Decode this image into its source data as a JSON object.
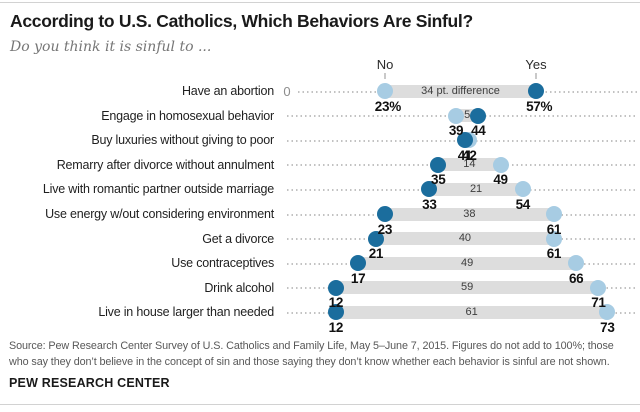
{
  "header": {
    "title": "According to U.S. Catholics, Which Behaviors Are Sinful?",
    "subtitle": "Do you think it is sinful to ..."
  },
  "axis": {
    "no": "No",
    "yes": "Yes",
    "zero": "0"
  },
  "colors": {
    "dot_no_light_blue": "#a7cce3",
    "dot_yes_dark_blue": "#1b6d9d",
    "bar_gray": "#dddddd",
    "leader_dotted_gray": "#c2c2c2"
  },
  "chart_data": {
    "type": "scatter",
    "variant": "dumbbell dot plot",
    "title": "According to U.S. Catholics, Which Behaviors Are Sinful?",
    "subtitle": "Do you think it is sinful to ...",
    "categories": [
      "Have an abortion",
      "Engage in homosexual behavior",
      "Buy luxuries without giving to poor",
      "Remarry after divorce without annulment",
      "Live with romantic partner outside marriage",
      "Use energy w/out considering environment",
      "Get a divorce",
      "Use contraceptives",
      "Drink alcohol",
      "Live in house larger than needed"
    ],
    "series": [
      {
        "name": "No",
        "color": "#a7cce3",
        "values": [
          23,
          39,
          42,
          49,
          54,
          61,
          61,
          66,
          71,
          73
        ]
      },
      {
        "name": "Yes",
        "color": "#1b6d9d",
        "values": [
          57,
          44,
          41,
          35,
          33,
          23,
          21,
          17,
          12,
          12
        ]
      }
    ],
    "difference_labels": [
      "34 pt. difference",
      "5",
      "",
      "14",
      "21",
      "38",
      "40",
      "49",
      "59",
      "61"
    ],
    "xlim": [
      0,
      80
    ],
    "grid": "dotted horizontal leader lines per row",
    "legend_position": "column headers No / Yes above first row"
  },
  "rows": [
    {
      "label": "Have an abortion",
      "no": {
        "value": 23,
        "text": "23%"
      },
      "yes": {
        "value": 57,
        "text": "57%"
      },
      "diff": "34 pt. difference",
      "zero_label": "0"
    },
    {
      "label": "Engage in homosexual behavior",
      "no": {
        "value": 39,
        "text": "39"
      },
      "yes": {
        "value": 44,
        "text": "44"
      },
      "diff": "5",
      "zero_label": ""
    },
    {
      "label": "Buy luxuries without giving to poor",
      "no": {
        "value": 42,
        "text": "42"
      },
      "yes": {
        "value": 41,
        "text": "41"
      },
      "diff": "",
      "zero_label": ""
    },
    {
      "label": "Remarry after divorce without annulment",
      "no": {
        "value": 49,
        "text": "49"
      },
      "yes": {
        "value": 35,
        "text": "35"
      },
      "diff": "14",
      "zero_label": ""
    },
    {
      "label": "Live with romantic partner outside marriage",
      "no": {
        "value": 54,
        "text": "54"
      },
      "yes": {
        "value": 33,
        "text": "33"
      },
      "diff": "21",
      "zero_label": ""
    },
    {
      "label": "Use energy w/out considering environment",
      "no": {
        "value": 61,
        "text": "61"
      },
      "yes": {
        "value": 23,
        "text": "23"
      },
      "diff": "38",
      "zero_label": ""
    },
    {
      "label": "Get a divorce",
      "no": {
        "value": 61,
        "text": "61"
      },
      "yes": {
        "value": 21,
        "text": "21"
      },
      "diff": "40",
      "zero_label": ""
    },
    {
      "label": "Use contraceptives",
      "no": {
        "value": 66,
        "text": "66"
      },
      "yes": {
        "value": 17,
        "text": "17"
      },
      "diff": "49",
      "zero_label": ""
    },
    {
      "label": "Drink alcohol",
      "no": {
        "value": 71,
        "text": "71"
      },
      "yes": {
        "value": 12,
        "text": "12"
      },
      "diff": "59",
      "zero_label": ""
    },
    {
      "label": "Live in house larger than needed",
      "no": {
        "value": 73,
        "text": "73"
      },
      "yes": {
        "value": 12,
        "text": "12"
      },
      "diff": "61",
      "zero_label": ""
    }
  ],
  "footer": {
    "source_line1": "Source: Pew Research Center Survey of U.S. Catholics and Family Life, May 5–June 7, 2015. Figures do not add to 100%; those",
    "source_line2": "who say they don’t believe in the concept of sin and those saying they don’t know whether each behavior is sinful are not shown.",
    "brand": "PEW RESEARCH CENTER"
  }
}
